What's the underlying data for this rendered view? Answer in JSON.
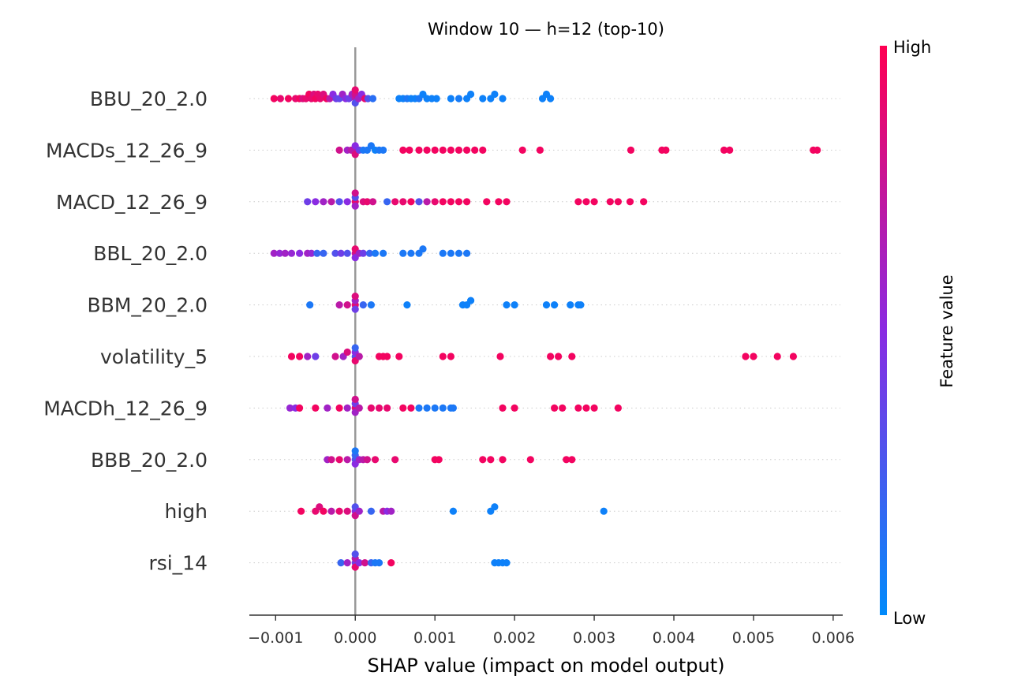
{
  "chart_data": {
    "type": "scatter",
    "title": "Window 10 — h=12 (top-10)",
    "xlabel": "SHAP value (impact on model output)",
    "ylabel": "",
    "xlim": [
      -0.00133,
      0.00612
    ],
    "x_ticks": [
      -0.001,
      0.0,
      0.001,
      0.002,
      0.003,
      0.004,
      0.005,
      0.006
    ],
    "x_tick_labels": [
      "−0.001",
      "0.000",
      "0.001",
      "0.002",
      "0.003",
      "0.004",
      "0.005",
      "0.006"
    ],
    "grid": false,
    "colorbar": {
      "label": "Feature value",
      "high_label": "High",
      "low_label": "Low",
      "high_color": "#ff0052",
      "mid_color": "#8a2be2",
      "low_color": "#008bfb"
    },
    "categories": [
      "BBU_20_2.0",
      "MACDs_12_26_9",
      "MACD_12_26_9",
      "BBL_20_2.0",
      "BBM_20_2.0",
      "volatility_5",
      "MACDh_12_26_9",
      "BBB_20_2.0",
      "high",
      "rsi_14"
    ],
    "series": [
      {
        "feature": "BBU_20_2.0",
        "points": [
          [
            -0.00102,
            0.95
          ],
          [
            -0.00094,
            0.9
          ],
          [
            -0.00084,
            0.95
          ],
          [
            -0.00075,
            0.9
          ],
          [
            -0.0007,
            0.95
          ],
          [
            -0.00066,
            0.85
          ],
          [
            -0.00062,
            0.9
          ],
          [
            -0.00058,
            0.95
          ],
          [
            -0.00055,
            0.9
          ],
          [
            -0.00052,
            0.85
          ],
          [
            -0.0005,
            0.95
          ],
          [
            -0.00047,
            0.9
          ],
          [
            -0.00044,
            0.9
          ],
          [
            -0.0004,
            0.85
          ],
          [
            -0.00036,
            0.95
          ],
          [
            -0.00032,
            0.7
          ],
          [
            -0.00028,
            0.5
          ],
          [
            -0.00024,
            0.4
          ],
          [
            -0.0002,
            0.35
          ],
          [
            -0.00016,
            0.6
          ],
          [
            -0.00012,
            0.5
          ],
          [
            -8e-05,
            0.4
          ],
          [
            -4e-05,
            0.6
          ],
          [
            0.0,
            0.7
          ],
          [
            0.0,
            0.8
          ],
          [
            0.0,
            0.3
          ],
          [
            0.0,
            0.9
          ],
          [
            4e-05,
            0.6
          ],
          [
            8e-05,
            0.5
          ],
          [
            0.00012,
            0.9
          ],
          [
            0.00016,
            0.3
          ],
          [
            0.00022,
            0.15
          ],
          [
            0.00055,
            0.05
          ],
          [
            0.0006,
            0.05
          ],
          [
            0.00065,
            0.1
          ],
          [
            0.0007,
            0.05
          ],
          [
            0.00075,
            0.05
          ],
          [
            0.0008,
            0.1
          ],
          [
            0.00085,
            0.05
          ],
          [
            0.0009,
            0.05
          ],
          [
            0.00096,
            0.05
          ],
          [
            0.00102,
            0.05
          ],
          [
            0.0012,
            0.05
          ],
          [
            0.0013,
            0.08
          ],
          [
            0.0014,
            0.05
          ],
          [
            0.00145,
            0.05
          ],
          [
            0.0016,
            0.05
          ],
          [
            0.0017,
            0.05
          ],
          [
            0.00175,
            0.05
          ],
          [
            0.00185,
            0.05
          ],
          [
            0.00235,
            0.05
          ],
          [
            0.0024,
            0.05
          ],
          [
            0.00245,
            0.05
          ]
        ]
      },
      {
        "feature": "MACDs_12_26_9",
        "points": [
          [
            -0.0002,
            0.8
          ],
          [
            -0.0001,
            0.6
          ],
          [
            -5e-05,
            0.7
          ],
          [
            0.0,
            0.7
          ],
          [
            0.0,
            0.5
          ],
          [
            0.0,
            0.85
          ],
          [
            5e-05,
            0.4
          ],
          [
            0.0001,
            0.1
          ],
          [
            0.00015,
            0.1
          ],
          [
            0.0002,
            0.1
          ],
          [
            0.00025,
            0.05
          ],
          [
            0.0003,
            0.1
          ],
          [
            0.00035,
            0.1
          ],
          [
            0.0006,
            0.95
          ],
          [
            0.00068,
            0.95
          ],
          [
            0.0008,
            0.95
          ],
          [
            0.0009,
            0.95
          ],
          [
            0.001,
            0.95
          ],
          [
            0.0011,
            0.95
          ],
          [
            0.0012,
            0.95
          ],
          [
            0.0013,
            0.95
          ],
          [
            0.0014,
            0.95
          ],
          [
            0.0015,
            0.95
          ],
          [
            0.0016,
            0.95
          ],
          [
            0.0021,
            0.95
          ],
          [
            0.00232,
            0.95
          ],
          [
            0.00346,
            0.95
          ],
          [
            0.00385,
            0.95
          ],
          [
            0.0039,
            0.95
          ],
          [
            0.00463,
            0.95
          ],
          [
            0.0047,
            0.95
          ],
          [
            0.00575,
            0.95
          ],
          [
            0.0058,
            0.95
          ]
        ]
      },
      {
        "feature": "MACD_12_26_9",
        "points": [
          [
            -0.0006,
            0.4
          ],
          [
            -0.0005,
            0.5
          ],
          [
            -0.0004,
            0.6
          ],
          [
            -0.0003,
            0.7
          ],
          [
            -0.0002,
            0.3
          ],
          [
            -0.0001,
            0.5
          ],
          [
            0.0,
            0.9
          ],
          [
            0.0,
            0.3
          ],
          [
            0.0,
            0.6
          ],
          [
            0.0,
            0.8
          ],
          [
            0.0001,
            0.85
          ],
          [
            0.00015,
            0.9
          ],
          [
            0.00022,
            0.8
          ],
          [
            0.0004,
            0.2
          ],
          [
            0.0005,
            0.9
          ],
          [
            0.0006,
            0.9
          ],
          [
            0.0007,
            0.95
          ],
          [
            0.0008,
            0.3
          ],
          [
            0.0009,
            0.7
          ],
          [
            0.001,
            0.9
          ],
          [
            0.0011,
            0.95
          ],
          [
            0.0012,
            0.95
          ],
          [
            0.0013,
            0.95
          ],
          [
            0.0014,
            0.95
          ],
          [
            0.00165,
            0.95
          ],
          [
            0.0018,
            0.95
          ],
          [
            0.0019,
            0.95
          ],
          [
            0.0028,
            0.95
          ],
          [
            0.0029,
            0.95
          ],
          [
            0.003,
            0.95
          ],
          [
            0.0032,
            0.95
          ],
          [
            0.0033,
            0.95
          ],
          [
            0.00345,
            0.95
          ],
          [
            0.00362,
            0.95
          ]
        ]
      },
      {
        "feature": "BBL_20_2.0",
        "points": [
          [
            -0.00102,
            0.6
          ],
          [
            -0.00095,
            0.55
          ],
          [
            -0.00088,
            0.6
          ],
          [
            -0.0008,
            0.55
          ],
          [
            -0.0007,
            0.5
          ],
          [
            -0.0006,
            0.6
          ],
          [
            -0.00055,
            0.55
          ],
          [
            -0.00048,
            0.2
          ],
          [
            -0.0004,
            0.2
          ],
          [
            -0.00025,
            0.3
          ],
          [
            -0.00018,
            0.4
          ],
          [
            -0.0001,
            0.3
          ],
          [
            0.0,
            0.8
          ],
          [
            0.0,
            0.9
          ],
          [
            0.0,
            0.5
          ],
          [
            5e-05,
            0.6
          ],
          [
            0.0001,
            0.4
          ],
          [
            0.00018,
            0.2
          ],
          [
            0.00025,
            0.1
          ],
          [
            0.00035,
            0.1
          ],
          [
            0.0006,
            0.1
          ],
          [
            0.0007,
            0.1
          ],
          [
            0.0008,
            0.1
          ],
          [
            0.00085,
            0.1
          ],
          [
            0.0011,
            0.1
          ],
          [
            0.0012,
            0.1
          ],
          [
            0.0013,
            0.1
          ],
          [
            0.0014,
            0.1
          ]
        ]
      },
      {
        "feature": "BBM_20_2.0",
        "points": [
          [
            -0.00057,
            0.1
          ],
          [
            -0.0002,
            0.7
          ],
          [
            -0.0001,
            0.8
          ],
          [
            0.0,
            0.9
          ],
          [
            0.0,
            0.6
          ],
          [
            0.0,
            0.4
          ],
          [
            0.0,
            0.85
          ],
          [
            0.0001,
            0.2
          ],
          [
            0.0002,
            0.1
          ],
          [
            0.00065,
            0.05
          ],
          [
            0.00135,
            0.05
          ],
          [
            0.0014,
            0.05
          ],
          [
            0.00145,
            0.05
          ],
          [
            0.0019,
            0.05
          ],
          [
            0.002,
            0.05
          ],
          [
            0.0024,
            0.05
          ],
          [
            0.0025,
            0.05
          ],
          [
            0.0027,
            0.05
          ],
          [
            0.0028,
            0.05
          ],
          [
            0.00283,
            0.05
          ]
        ]
      },
      {
        "feature": "volatility_5",
        "points": [
          [
            -0.0008,
            0.95
          ],
          [
            -0.0007,
            0.95
          ],
          [
            -0.0006,
            0.6
          ],
          [
            -0.0005,
            0.4
          ],
          [
            -0.00025,
            0.8
          ],
          [
            -0.00015,
            0.6
          ],
          [
            -0.0001,
            0.85
          ],
          [
            0.0,
            0.3
          ],
          [
            0.0,
            0.5
          ],
          [
            0.0,
            0.9
          ],
          [
            0.0,
            0.2
          ],
          [
            5e-05,
            0.7
          ],
          [
            0.0003,
            0.95
          ],
          [
            0.00035,
            0.95
          ],
          [
            0.0004,
            0.95
          ],
          [
            0.00055,
            0.95
          ],
          [
            0.0011,
            0.95
          ],
          [
            0.0012,
            0.95
          ],
          [
            0.00182,
            0.95
          ],
          [
            0.00245,
            0.95
          ],
          [
            0.00255,
            0.95
          ],
          [
            0.00272,
            0.95
          ],
          [
            0.0049,
            0.95
          ],
          [
            0.005,
            0.95
          ],
          [
            0.0053,
            0.95
          ],
          [
            0.0055,
            0.95
          ]
        ]
      },
      {
        "feature": "MACDh_12_26_9",
        "points": [
          [
            -0.00082,
            0.55
          ],
          [
            -0.00075,
            0.5
          ],
          [
            -0.0007,
            0.95
          ],
          [
            -0.0005,
            0.95
          ],
          [
            -0.00035,
            0.6
          ],
          [
            -0.0002,
            0.95
          ],
          [
            -0.0001,
            0.6
          ],
          [
            0.0,
            0.9
          ],
          [
            0.0,
            0.4
          ],
          [
            0.0,
            0.6
          ],
          [
            0.0,
            0.8
          ],
          [
            5e-05,
            0.7
          ],
          [
            0.0002,
            0.9
          ],
          [
            0.0003,
            0.9
          ],
          [
            0.0004,
            0.9
          ],
          [
            0.0006,
            0.95
          ],
          [
            0.0007,
            0.95
          ],
          [
            0.0008,
            0.1
          ],
          [
            0.0009,
            0.1
          ],
          [
            0.001,
            0.1
          ],
          [
            0.0011,
            0.1
          ],
          [
            0.0012,
            0.1
          ],
          [
            0.00123,
            0.1
          ],
          [
            0.00185,
            0.95
          ],
          [
            0.002,
            0.95
          ],
          [
            0.0025,
            0.95
          ],
          [
            0.0026,
            0.95
          ],
          [
            0.0028,
            0.95
          ],
          [
            0.0029,
            0.95
          ],
          [
            0.003,
            0.95
          ],
          [
            0.0033,
            0.95
          ]
        ]
      },
      {
        "feature": "BBB_20_2.0",
        "points": [
          [
            -0.00035,
            0.6
          ],
          [
            -0.0003,
            0.8
          ],
          [
            -0.0002,
            0.9
          ],
          [
            -0.0001,
            0.7
          ],
          [
            0.0,
            0.3
          ],
          [
            0.0,
            0.2
          ],
          [
            0.0,
            0.5
          ],
          [
            0.0,
            0.1
          ],
          [
            5e-05,
            0.6
          ],
          [
            0.0001,
            0.7
          ],
          [
            0.00015,
            0.8
          ],
          [
            0.00025,
            0.9
          ],
          [
            0.0005,
            0.9
          ],
          [
            0.001,
            0.95
          ],
          [
            0.00105,
            0.95
          ],
          [
            0.0016,
            0.95
          ],
          [
            0.0017,
            0.95
          ],
          [
            0.00185,
            0.95
          ],
          [
            0.0022,
            0.95
          ],
          [
            0.00265,
            0.95
          ],
          [
            0.00272,
            0.95
          ]
        ]
      },
      {
        "feature": "high",
        "points": [
          [
            -0.00068,
            0.95
          ],
          [
            -0.0005,
            0.9
          ],
          [
            -0.00045,
            0.85
          ],
          [
            -0.0004,
            0.95
          ],
          [
            -0.0003,
            0.7
          ],
          [
            -0.0002,
            0.9
          ],
          [
            -0.0001,
            0.85
          ],
          [
            0.0,
            0.5
          ],
          [
            0.0,
            0.3
          ],
          [
            0.0,
            0.8
          ],
          [
            5e-05,
            0.6
          ],
          [
            0.0002,
            0.2
          ],
          [
            0.00035,
            0.7
          ],
          [
            0.0004,
            0.5
          ],
          [
            0.00045,
            0.6
          ],
          [
            0.00123,
            0.05
          ],
          [
            0.0017,
            0.05
          ],
          [
            0.00175,
            0.05
          ],
          [
            0.00312,
            0.05
          ]
        ]
      },
      {
        "feature": "rsi_14",
        "points": [
          [
            -0.00018,
            0.2
          ],
          [
            -0.0001,
            0.6
          ],
          [
            0.0,
            0.4
          ],
          [
            0.0,
            0.7
          ],
          [
            0.0,
            0.9
          ],
          [
            0.0,
            0.3
          ],
          [
            5e-05,
            0.5
          ],
          [
            0.00012,
            0.8
          ],
          [
            0.0002,
            0.2
          ],
          [
            0.00025,
            0.1
          ],
          [
            0.0003,
            0.1
          ],
          [
            0.00045,
            0.95
          ],
          [
            0.00175,
            0.05
          ],
          [
            0.0018,
            0.05
          ],
          [
            0.00185,
            0.05
          ],
          [
            0.0019,
            0.05
          ]
        ]
      }
    ]
  }
}
